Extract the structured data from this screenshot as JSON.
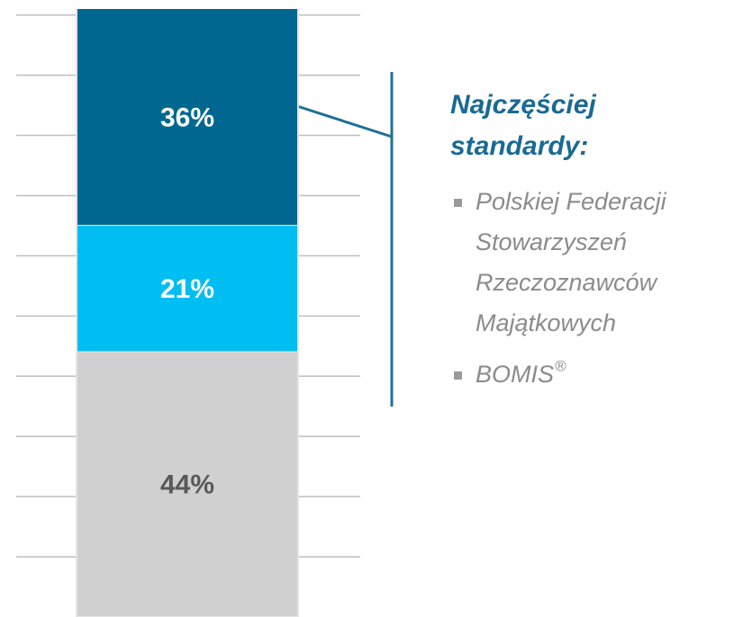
{
  "chart_data": {
    "type": "bar",
    "stacked": true,
    "categories": [
      null
    ],
    "series": [
      {
        "color": "#006890",
        "label_color": "#ffffff",
        "values": [
          36
        ],
        "value_labels": [
          "36%"
        ]
      },
      {
        "color": "#00bdf2",
        "label_color": "#ffffff",
        "values": [
          21
        ],
        "value_labels": [
          "21%"
        ]
      },
      {
        "color": "#d0d0d0",
        "label_color": "#595959",
        "values": [
          44
        ],
        "value_labels": [
          "44%"
        ]
      }
    ],
    "ylim": [
      0,
      101
    ],
    "yticks": [
      10,
      20,
      30,
      40,
      50,
      60,
      70,
      80,
      90,
      100
    ],
    "grid": true,
    "annotation": {
      "title_lines": [
        "Najczęściej",
        "standardy:"
      ],
      "bullets": [
        {
          "lines": [
            "Polskiej Federacji",
            "Stowarzyszeń",
            "Rzeczoznawców",
            "Majątkowych"
          ]
        },
        {
          "lines": [
            "BOMIS"
          ],
          "sup": "®"
        }
      ]
    }
  }
}
